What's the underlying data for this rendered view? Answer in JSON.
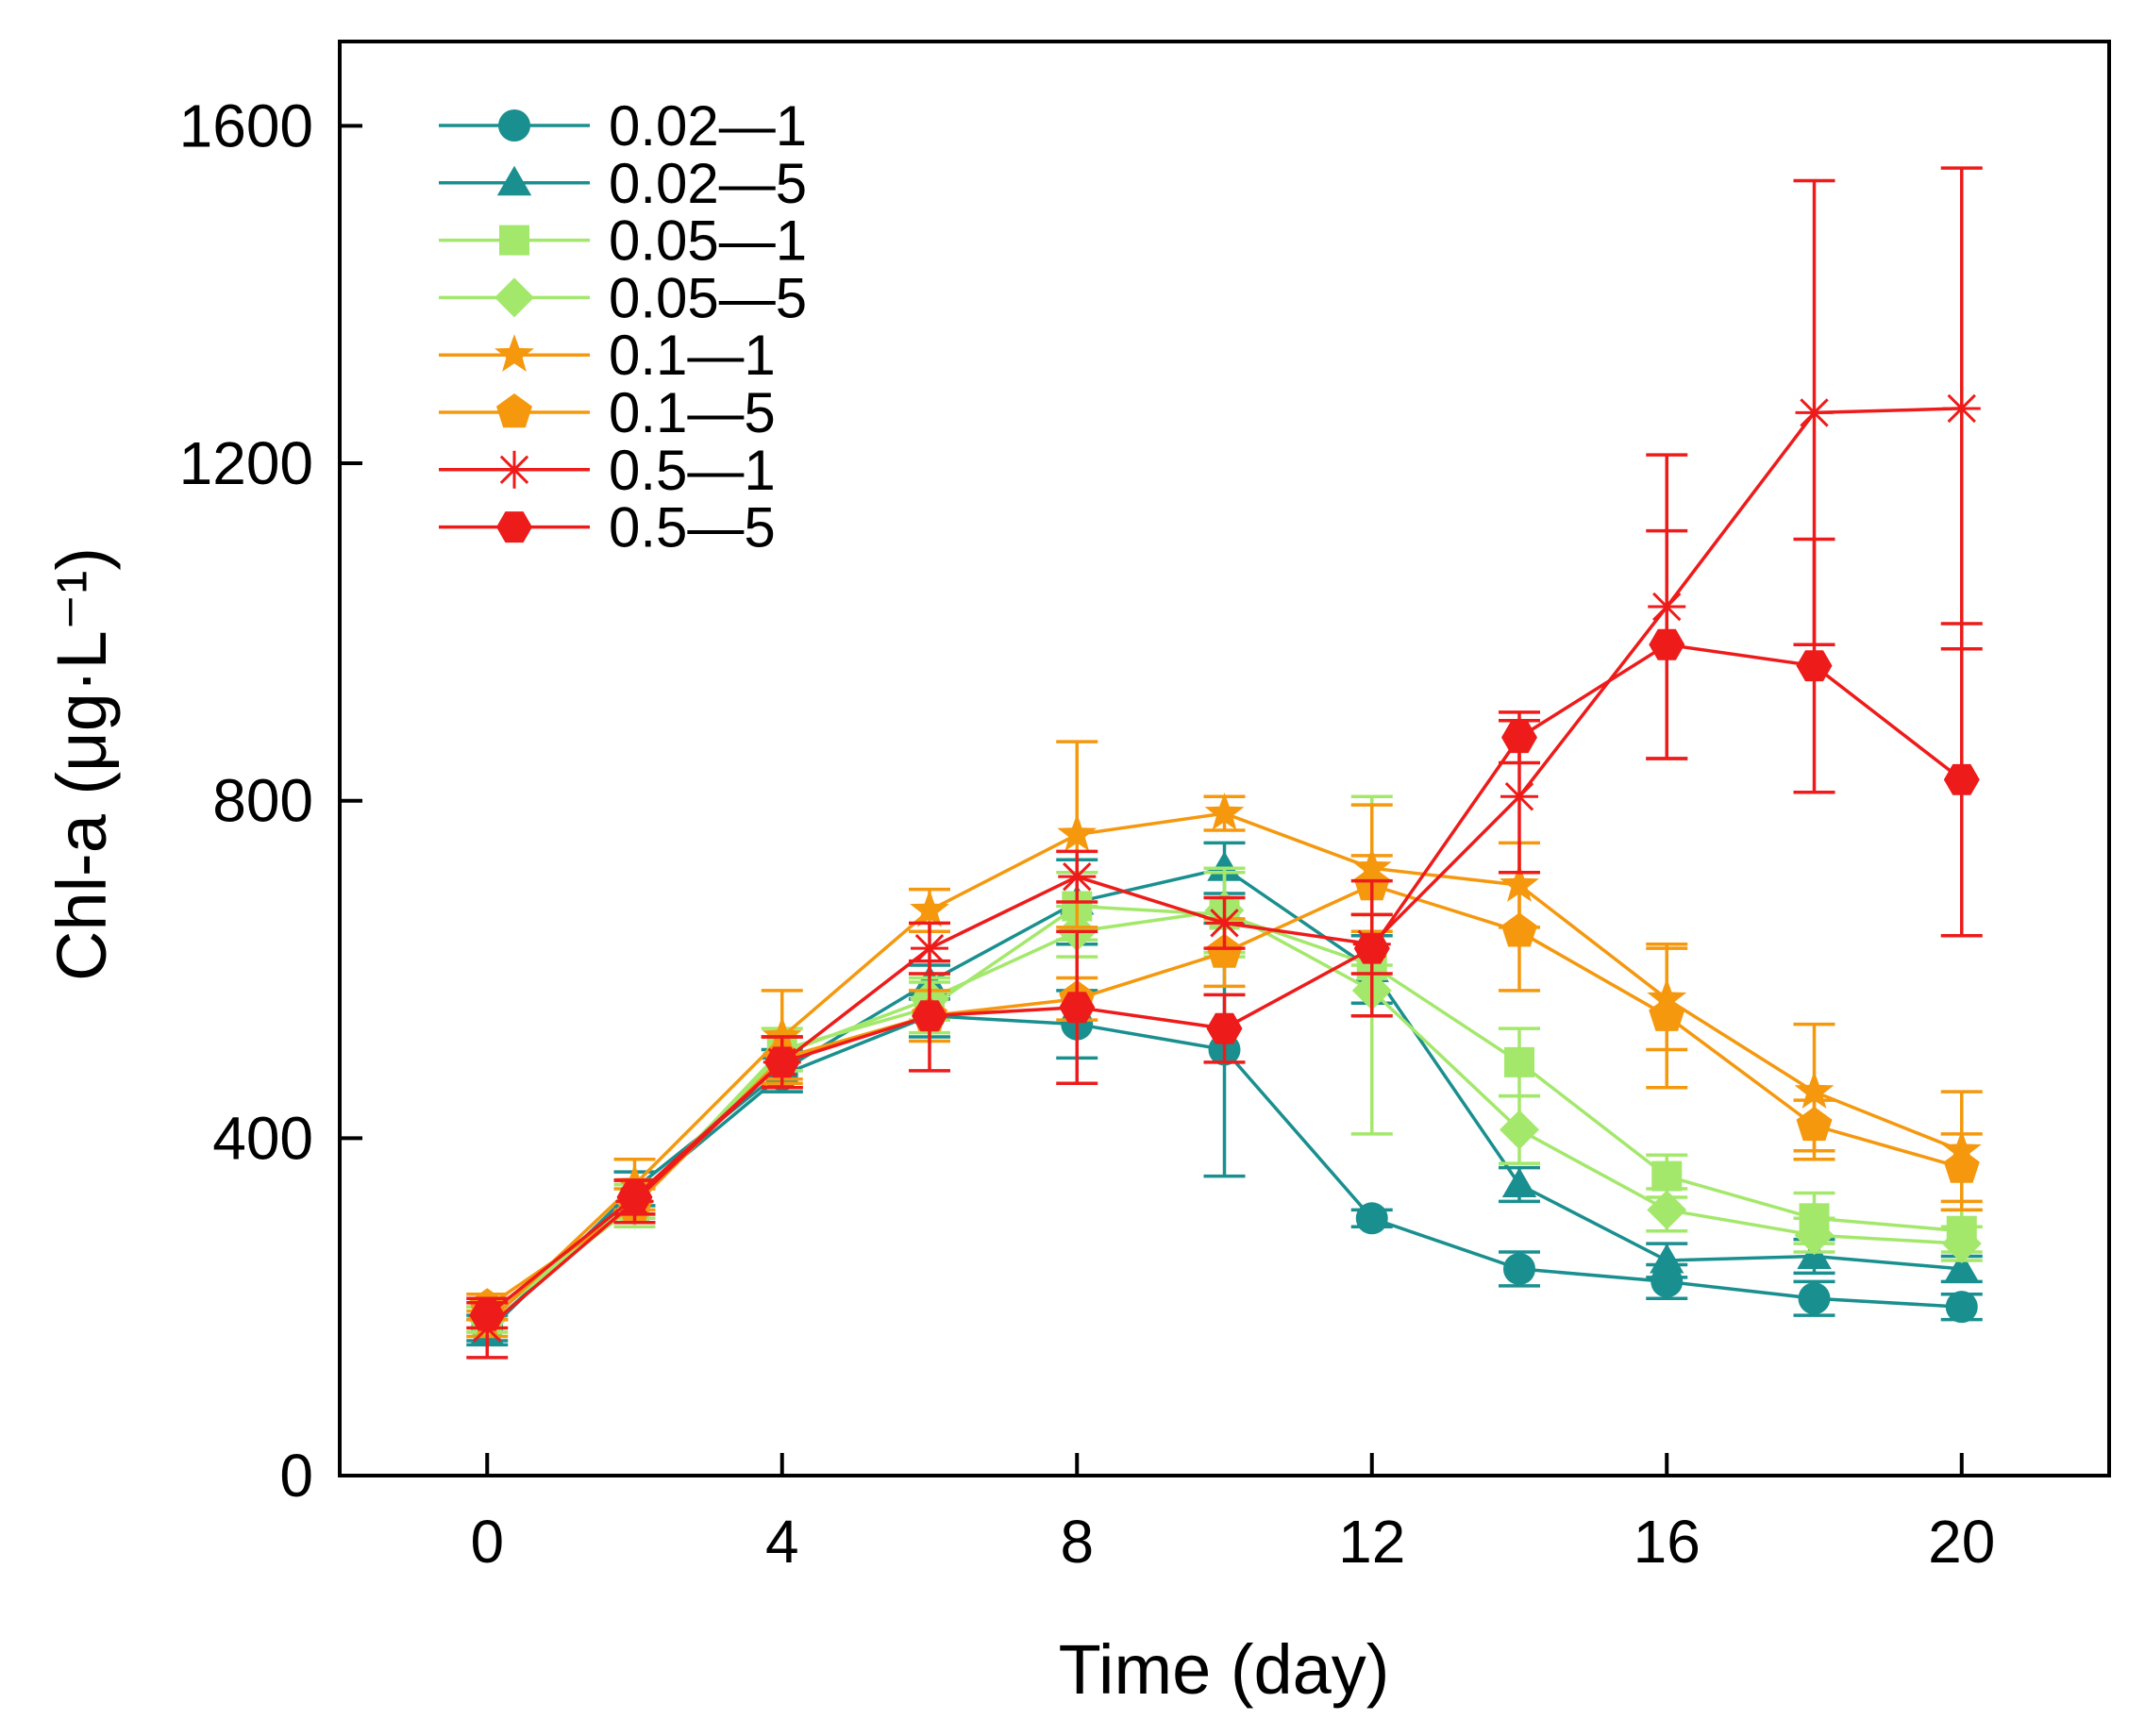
{
  "chart_data": {
    "type": "line",
    "title": "",
    "xlabel": "Time (day)",
    "ylabel": "Chl-a (μg·L⁻¹)",
    "xlim": [
      -2,
      22
    ],
    "ylim": [
      0,
      1700
    ],
    "x": [
      0,
      2,
      4,
      6,
      8,
      10,
      12,
      14,
      16,
      18,
      20
    ],
    "xticks": [
      "0",
      "4",
      "8",
      "12",
      "16",
      "20"
    ],
    "xtick_values": [
      0,
      4,
      8,
      12,
      16,
      20
    ],
    "yticks": [
      "0",
      "400",
      "800",
      "1200",
      "1600"
    ],
    "ytick_values": [
      0,
      400,
      800,
      1200,
      1600
    ],
    "grid": false,
    "legend_position": "top-left",
    "colors": {
      "teal": "#1a8f8f",
      "lightgreen": "#a3e86b",
      "orange": "#f5980e",
      "red": "#ee1b1b"
    },
    "series": [
      {
        "name": "0.02—1",
        "color": "#1a8f8f",
        "marker": "circle",
        "values": [
          175,
          330,
          475,
          545,
          535,
          505,
          305,
          245,
          230,
          210,
          200
        ],
        "errors": [
          15,
          20,
          20,
          25,
          40,
          150,
          10,
          20,
          20,
          20,
          15
        ]
      },
      {
        "name": "0.02—5",
        "color": "#1a8f8f",
        "marker": "triangle",
        "values": [
          170,
          340,
          480,
          585,
          680,
          720,
          600,
          345,
          255,
          260,
          245
        ],
        "errors": [
          15,
          20,
          25,
          20,
          50,
          30,
          40,
          20,
          20,
          20,
          15
        ]
      },
      {
        "name": "0.05—1",
        "color": "#a3e86b",
        "marker": "square",
        "values": [
          185,
          320,
          505,
          555,
          675,
          665,
          605,
          490,
          355,
          305,
          290
        ],
        "errors": [
          15,
          25,
          25,
          30,
          40,
          50,
          200,
          40,
          25,
          30,
          25
        ]
      },
      {
        "name": "0.05—5",
        "color": "#a3e86b",
        "marker": "diamond",
        "values": [
          185,
          325,
          500,
          565,
          645,
          670,
          575,
          410,
          315,
          285,
          275
        ],
        "errors": [
          15,
          20,
          20,
          25,
          30,
          50,
          30,
          40,
          25,
          20,
          20
        ]
      },
      {
        "name": "0.1—1",
        "color": "#f5980e",
        "marker": "star",
        "values": [
          180,
          345,
          520,
          670,
          760,
          785,
          720,
          700,
          565,
          455,
          385
        ],
        "errors": [
          15,
          30,
          55,
          25,
          110,
          20,
          75,
          50,
          60,
          80,
          70
        ]
      },
      {
        "name": "0.1—5",
        "color": "#f5980e",
        "marker": "pentagon",
        "values": [
          200,
          320,
          495,
          545,
          565,
          620,
          700,
          645,
          545,
          415,
          365
        ],
        "errors": [
          15,
          20,
          25,
          30,
          25,
          40,
          35,
          70,
          85,
          30,
          40
        ]
      },
      {
        "name": "0.5—1",
        "color": "#ee1b1b",
        "marker": "asterisk",
        "values": [
          175,
          325,
          490,
          625,
          710,
          655,
          630,
          805,
          1030,
          1260,
          1265
        ],
        "errors": [
          35,
          25,
          30,
          30,
          30,
          30,
          35,
          90,
          180,
          275,
          285
        ]
      },
      {
        "name": "0.5—5",
        "color": "#ee1b1b",
        "marker": "hexagon",
        "values": [
          190,
          330,
          490,
          545,
          555,
          530,
          625,
          875,
          985,
          960,
          825
        ],
        "errors": [
          15,
          20,
          30,
          65,
          90,
          40,
          80,
          30,
          135,
          150,
          185
        ]
      }
    ]
  }
}
